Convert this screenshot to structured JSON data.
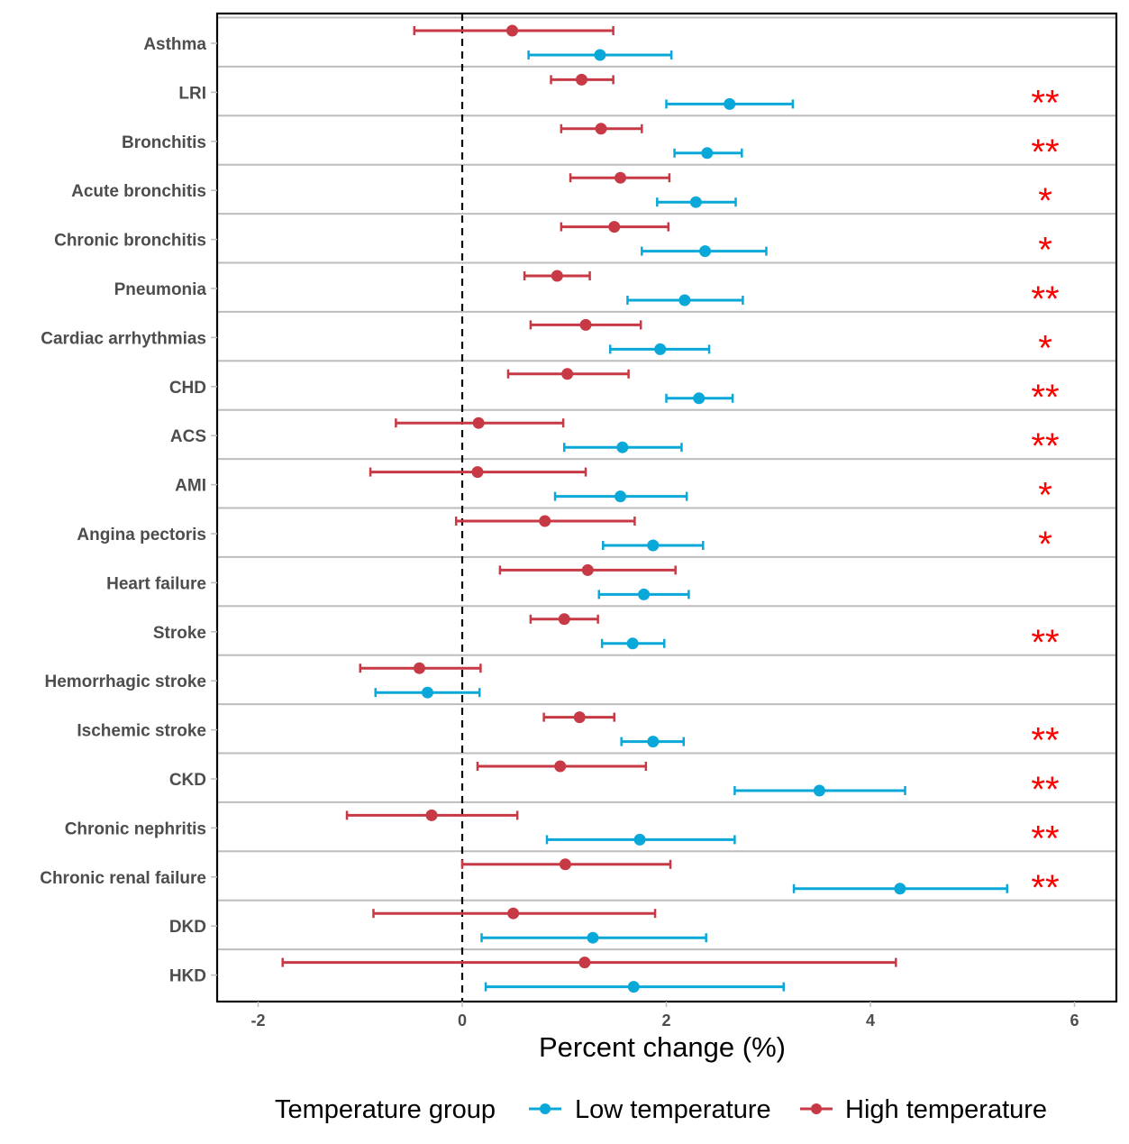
{
  "chart_data": {
    "type": "forest",
    "title": "",
    "xlabel": "Percent change (%)",
    "ylabel": "",
    "xlim": [
      -2.4,
      6.4
    ],
    "x_ticks": [
      -2,
      0,
      2,
      4,
      6
    ],
    "x_tick_labels": [
      "-2",
      "0",
      "2",
      "4",
      "6"
    ],
    "reference_line": 0,
    "grid": "horizontal separators between categories",
    "legend": {
      "title": "Temperature group",
      "placement": "bottom",
      "entries": [
        {
          "name": "Low temperature",
          "color": "#0aa8d8"
        },
        {
          "name": "High temperature",
          "color": "#c73a45"
        }
      ]
    },
    "categories": [
      "Asthma",
      "LRI",
      "Bronchitis",
      "Acute bronchitis",
      "Chronic bronchitis",
      "Pneumonia",
      "Cardiac arrhythmias",
      "CHD",
      "ACS",
      "AMI",
      "Angina pectoris",
      "Heart failure",
      "Stroke",
      "Hemorrhagic stroke",
      "Ischemic stroke",
      "CKD",
      "Chronic nephritis",
      "Chronic renal failure",
      "DKD",
      "HKD"
    ],
    "series": [
      {
        "name": "High temperature",
        "color": "#c73a45",
        "estimate": [
          0.49,
          1.17,
          1.36,
          1.55,
          1.49,
          0.93,
          1.21,
          1.03,
          0.16,
          0.15,
          0.81,
          1.23,
          1.0,
          -0.42,
          1.15,
          0.96,
          -0.3,
          1.01,
          0.5,
          1.2
        ],
        "lower": [
          -0.47,
          0.87,
          0.97,
          1.06,
          0.97,
          0.61,
          0.67,
          0.45,
          -0.65,
          -0.9,
          -0.06,
          0.37,
          0.67,
          -1.0,
          0.8,
          0.15,
          -1.13,
          0.0,
          -0.87,
          -1.76
        ],
        "upper": [
          1.48,
          1.48,
          1.76,
          2.03,
          2.02,
          1.25,
          1.75,
          1.63,
          0.99,
          1.21,
          1.69,
          2.09,
          1.33,
          0.18,
          1.49,
          1.8,
          0.54,
          2.04,
          1.89,
          4.25
        ]
      },
      {
        "name": "Low temperature",
        "color": "#0aa8d8",
        "estimate": [
          1.35,
          2.62,
          2.4,
          2.29,
          2.38,
          2.18,
          1.94,
          2.32,
          1.57,
          1.55,
          1.87,
          1.78,
          1.67,
          -0.34,
          1.87,
          3.5,
          1.74,
          4.29,
          1.28,
          1.68
        ],
        "lower": [
          0.65,
          2.0,
          2.08,
          1.91,
          1.76,
          1.62,
          1.45,
          2.0,
          1.0,
          0.91,
          1.38,
          1.34,
          1.37,
          -0.85,
          1.56,
          2.67,
          0.83,
          3.25,
          0.19,
          0.23
        ],
        "upper": [
          2.05,
          3.24,
          2.74,
          2.68,
          2.98,
          2.75,
          2.42,
          2.65,
          2.15,
          2.2,
          2.36,
          2.22,
          1.98,
          0.17,
          2.17,
          4.34,
          2.67,
          5.34,
          2.39,
          3.15
        ]
      }
    ],
    "significance": [
      "",
      "**",
      "**",
      "*",
      "*",
      "**",
      "*",
      "**",
      "**",
      "*",
      "*",
      "",
      "**",
      "",
      "**",
      "**",
      "**",
      "**",
      "",
      ""
    ],
    "significance_color": "#ff0000"
  }
}
